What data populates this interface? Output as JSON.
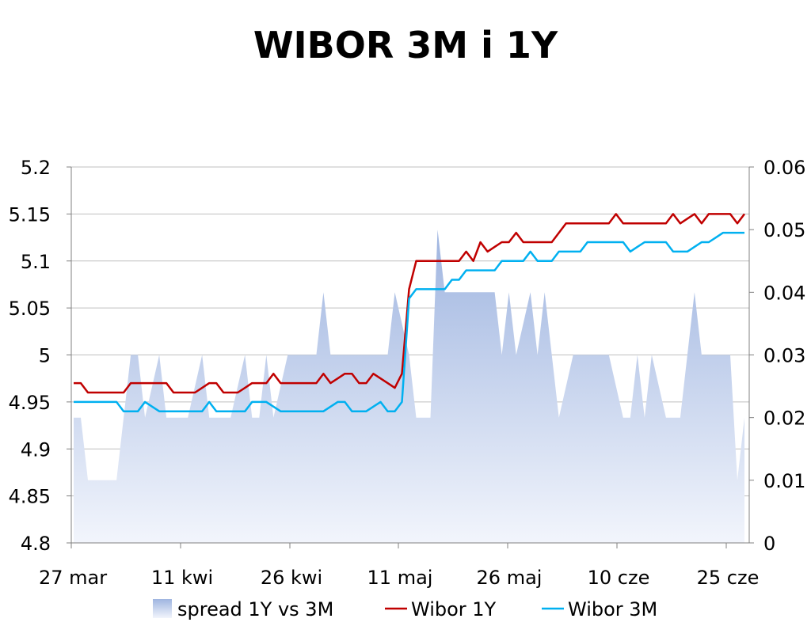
{
  "chart_data": {
    "type": "line",
    "title": "WIBOR 3M i 1Y",
    "x_tick_labels": [
      "27 mar",
      "11 kwi",
      "26 kwi",
      "11 maj",
      "26 maj",
      "10 cze",
      "25 cze"
    ],
    "left_axis": {
      "ylim": [
        4.8,
        5.2
      ],
      "tick_labels": [
        "4.8",
        "4.85",
        "4.9",
        "4.95",
        "5",
        "5.05",
        "5.1",
        "5.15",
        "5.2"
      ]
    },
    "right_axis": {
      "ylim": [
        0,
        0.06
      ],
      "tick_labels": [
        "0",
        "0.01",
        "0.02",
        "0.03",
        "0.04",
        "0.05",
        "0.06"
      ]
    },
    "grid": true,
    "legend_position": "bottom",
    "series": [
      {
        "name": "spread 1Y vs 3M",
        "kind": "area",
        "axis": "right",
        "color": "#b4c6e7",
        "x": [
          0,
          1,
          2,
          3,
          4,
          5,
          6,
          7,
          8,
          9,
          10,
          11,
          12,
          13,
          14,
          15,
          16,
          17,
          18,
          19,
          20,
          21,
          22,
          23,
          24,
          25,
          26,
          27,
          28,
          29,
          30,
          31,
          32,
          33,
          34,
          35,
          36,
          37,
          38,
          39,
          40,
          41,
          42,
          43,
          44,
          45,
          46,
          47,
          48,
          49,
          50,
          51,
          52,
          53,
          54,
          55,
          56,
          57,
          58,
          59,
          60,
          61,
          62,
          63,
          64,
          65,
          66,
          67,
          68,
          69,
          70,
          71,
          72,
          73,
          74,
          75,
          76,
          77,
          78,
          79,
          80,
          81,
          82,
          83,
          84,
          85,
          86,
          87,
          88,
          89,
          90,
          91,
          92,
          93,
          94
        ],
        "values": [
          0.02,
          0.02,
          0.01,
          0.01,
          0.01,
          0.01,
          0.01,
          0.02,
          0.03,
          0.03,
          0.02,
          0.025,
          0.03,
          0.02,
          0.02,
          0.02,
          0.02,
          0.025,
          0.03,
          0.02,
          0.02,
          0.02,
          0.02,
          0.025,
          0.03,
          0.02,
          0.02,
          0.03,
          0.02,
          0.025,
          0.03,
          0.03,
          0.03,
          0.03,
          0.03,
          0.04,
          0.03,
          0.03,
          0.03,
          0.03,
          0.03,
          0.03,
          0.03,
          0.03,
          0.03,
          0.04,
          0.035,
          0.03,
          0.02,
          0.02,
          0.02,
          0.05,
          0.04,
          0.04,
          0.04,
          0.04,
          0.04,
          0.04,
          0.04,
          0.04,
          0.03,
          0.04,
          0.03,
          0.035,
          0.04,
          0.03,
          0.04,
          0.03,
          0.02,
          0.025,
          0.03,
          0.03,
          0.03,
          0.03,
          0.03,
          0.03,
          0.025,
          0.02,
          0.02,
          0.03,
          0.02,
          0.03,
          0.025,
          0.02,
          0.02,
          0.02,
          0.03,
          0.04,
          0.03,
          0.03,
          0.03,
          0.03,
          0.03,
          0.01,
          0.02
        ]
      },
      {
        "name": "Wibor 1Y",
        "kind": "line",
        "axis": "left",
        "color": "#c00000",
        "x": [
          0,
          1,
          2,
          3,
          4,
          5,
          6,
          7,
          8,
          9,
          10,
          11,
          12,
          13,
          14,
          15,
          16,
          17,
          18,
          19,
          20,
          21,
          22,
          23,
          24,
          25,
          26,
          27,
          28,
          29,
          30,
          31,
          32,
          33,
          34,
          35,
          36,
          37,
          38,
          39,
          40,
          41,
          42,
          43,
          44,
          45,
          46,
          47,
          48,
          49,
          50,
          51,
          52,
          53,
          54,
          55,
          56,
          57,
          58,
          59,
          60,
          61,
          62,
          63,
          64,
          65,
          66,
          67,
          68,
          69,
          70,
          71,
          72,
          73,
          74,
          75,
          76,
          77,
          78,
          79,
          80,
          81,
          82,
          83,
          84,
          85,
          86,
          87,
          88,
          89,
          90,
          91,
          92,
          93,
          94
        ],
        "values": [
          4.97,
          4.97,
          4.96,
          4.96,
          4.96,
          4.96,
          4.96,
          4.96,
          4.97,
          4.97,
          4.97,
          4.97,
          4.97,
          4.97,
          4.96,
          4.96,
          4.96,
          4.96,
          4.965,
          4.97,
          4.97,
          4.96,
          4.96,
          4.96,
          4.965,
          4.97,
          4.97,
          4.97,
          4.98,
          4.97,
          4.97,
          4.97,
          4.97,
          4.97,
          4.97,
          4.98,
          4.97,
          4.975,
          4.98,
          4.98,
          4.97,
          4.97,
          4.98,
          4.975,
          4.97,
          4.965,
          4.98,
          5.07,
          5.1,
          5.1,
          5.1,
          5.1,
          5.1,
          5.1,
          5.1,
          5.11,
          5.1,
          5.12,
          5.11,
          5.115,
          5.12,
          5.12,
          5.13,
          5.12,
          5.12,
          5.12,
          5.12,
          5.12,
          5.13,
          5.14,
          5.14,
          5.14,
          5.14,
          5.14,
          5.14,
          5.14,
          5.15,
          5.14,
          5.14,
          5.14,
          5.14,
          5.14,
          5.14,
          5.14,
          5.15,
          5.14,
          5.145,
          5.15,
          5.14,
          5.15,
          5.15,
          5.15,
          5.15,
          5.14,
          5.15
        ]
      },
      {
        "name": "Wibor 3M",
        "kind": "line",
        "axis": "left",
        "color": "#00b0f0",
        "x": [
          0,
          1,
          2,
          3,
          4,
          5,
          6,
          7,
          8,
          9,
          10,
          11,
          12,
          13,
          14,
          15,
          16,
          17,
          18,
          19,
          20,
          21,
          22,
          23,
          24,
          25,
          26,
          27,
          28,
          29,
          30,
          31,
          32,
          33,
          34,
          35,
          36,
          37,
          38,
          39,
          40,
          41,
          42,
          43,
          44,
          45,
          46,
          47,
          48,
          49,
          50,
          51,
          52,
          53,
          54,
          55,
          56,
          57,
          58,
          59,
          60,
          61,
          62,
          63,
          64,
          65,
          66,
          67,
          68,
          69,
          70,
          71,
          72,
          73,
          74,
          75,
          76,
          77,
          78,
          79,
          80,
          81,
          82,
          83,
          84,
          85,
          86,
          87,
          88,
          89,
          90,
          91,
          92,
          93,
          94
        ],
        "values": [
          4.95,
          4.95,
          4.95,
          4.95,
          4.95,
          4.95,
          4.95,
          4.94,
          4.94,
          4.94,
          4.95,
          4.945,
          4.94,
          4.94,
          4.94,
          4.94,
          4.94,
          4.94,
          4.94,
          4.95,
          4.94,
          4.94,
          4.94,
          4.94,
          4.94,
          4.95,
          4.95,
          4.95,
          4.945,
          4.94,
          4.94,
          4.94,
          4.94,
          4.94,
          4.94,
          4.94,
          4.945,
          4.95,
          4.95,
          4.94,
          4.94,
          4.94,
          4.945,
          4.95,
          4.94,
          4.94,
          4.95,
          5.06,
          5.07,
          5.07,
          5.07,
          5.07,
          5.07,
          5.08,
          5.08,
          5.09,
          5.09,
          5.09,
          5.09,
          5.09,
          5.1,
          5.1,
          5.1,
          5.1,
          5.11,
          5.1,
          5.1,
          5.1,
          5.11,
          5.11,
          5.11,
          5.11,
          5.12,
          5.12,
          5.12,
          5.12,
          5.12,
          5.12,
          5.11,
          5.115,
          5.12,
          5.12,
          5.12,
          5.12,
          5.11,
          5.11,
          5.11,
          5.115,
          5.12,
          5.12,
          5.125,
          5.13,
          5.13,
          5.13,
          5.13
        ]
      }
    ]
  }
}
